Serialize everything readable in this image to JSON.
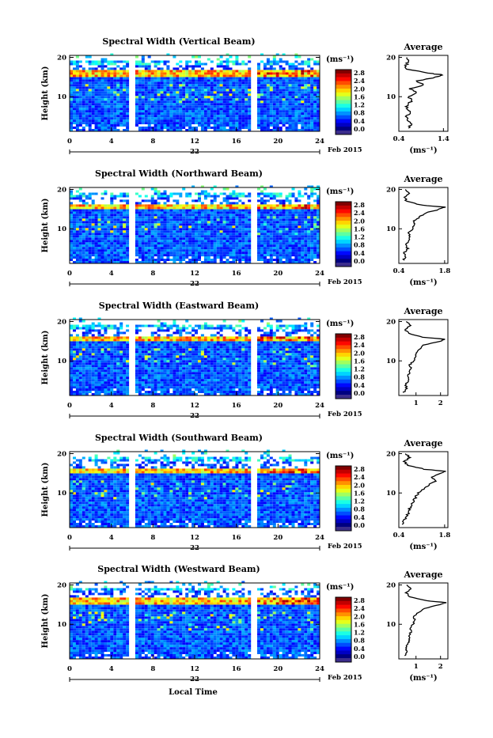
{
  "figure": {
    "x_axis_label": "Local Time",
    "date_label_day": "22",
    "date_label_month": "Feb 2015",
    "colorbar_unit": "(ms⁻¹)",
    "colorbar_ticks": [
      "2.8",
      "2.4",
      "2.0",
      "1.6",
      "1.2",
      "0.8",
      "0.4",
      "0.0"
    ],
    "avg_title": "Average",
    "avg_unit": "(ms⁻¹)",
    "height_label": "Height (km)"
  },
  "chart_data": [
    {
      "type": "heatmap",
      "title": "Spectral Width (Vertical Beam)",
      "xlabel": "",
      "ylabel": "Height (km)",
      "x_ticks": [
        0,
        4,
        8,
        12,
        16,
        20,
        24
      ],
      "x_range": [
        0,
        24
      ],
      "y_ticks": [
        10,
        20
      ],
      "y_range": [
        1.2,
        20.5
      ],
      "gaps_hours": [
        [
          5.8,
          6.2
        ],
        [
          17.6,
          18.0
        ]
      ],
      "tropopause_km": 15.5,
      "colorbar": {
        "min": 0.0,
        "max": 3.0,
        "ticks": [
          0.0,
          0.4,
          0.8,
          1.2,
          1.6,
          2.0,
          2.4,
          2.8
        ]
      },
      "average_profile": {
        "xlabel": "(ms⁻¹)",
        "x_ticks": [
          0.4,
          1.4
        ],
        "x_range": [
          0.4,
          1.5
        ],
        "y_ticks": [
          10,
          20
        ],
        "height_km": [
          2,
          3,
          4,
          5,
          6,
          7,
          8,
          9,
          10,
          11,
          12,
          13,
          14,
          15,
          15.5,
          16,
          17,
          18,
          19,
          20
        ],
        "value": [
          0.62,
          0.7,
          0.55,
          0.58,
          0.68,
          0.6,
          0.57,
          0.72,
          0.62,
          0.78,
          0.66,
          0.95,
          0.8,
          1.25,
          1.4,
          1.05,
          0.6,
          0.55,
          0.62,
          0.58
        ]
      }
    },
    {
      "type": "heatmap",
      "title": "Spectral Width (Northward Beam)",
      "xlabel": "",
      "ylabel": "Height (km)",
      "x_ticks": [
        0,
        4,
        8,
        12,
        16,
        20,
        24
      ],
      "x_range": [
        0,
        24
      ],
      "y_ticks": [
        10,
        20
      ],
      "y_range": [
        1.2,
        20.5
      ],
      "gaps_hours": [
        [
          5.8,
          6.2
        ],
        [
          17.6,
          18.0
        ]
      ],
      "tropopause_km": 15.3,
      "colorbar": {
        "min": 0.0,
        "max": 3.0,
        "ticks": [
          0.0,
          0.4,
          0.8,
          1.2,
          1.6,
          2.0,
          2.4,
          2.8
        ]
      },
      "average_profile": {
        "xlabel": "(ms⁻¹)",
        "x_ticks": [
          0.4,
          1.8
        ],
        "x_range": [
          0.4,
          1.9
        ],
        "y_ticks": [
          10,
          20
        ],
        "height_km": [
          2,
          3,
          4,
          5,
          6,
          7,
          8,
          9,
          10,
          11,
          12,
          13,
          14,
          15,
          15.5,
          16,
          17,
          18,
          19,
          20
        ],
        "value": [
          0.55,
          0.6,
          0.58,
          0.66,
          0.62,
          0.7,
          0.75,
          0.68,
          0.82,
          0.9,
          0.86,
          1.05,
          1.2,
          1.65,
          1.8,
          1.1,
          0.65,
          0.55,
          0.7,
          0.6
        ]
      }
    },
    {
      "type": "heatmap",
      "title": "Spectral Width (Eastward Beam)",
      "xlabel": "",
      "ylabel": "Height (km)",
      "x_ticks": [
        0,
        4,
        8,
        12,
        16,
        20,
        24
      ],
      "x_range": [
        0,
        24
      ],
      "y_ticks": [
        10,
        20
      ],
      "y_range": [
        1.2,
        20.5
      ],
      "gaps_hours": [
        [
          5.8,
          6.2
        ],
        [
          17.6,
          18.0
        ]
      ],
      "tropopause_km": 15.3,
      "colorbar": {
        "min": 0.0,
        "max": 3.0,
        "ticks": [
          0.0,
          0.4,
          0.8,
          1.2,
          1.6,
          2.0,
          2.4,
          2.8
        ]
      },
      "average_profile": {
        "xlabel": "",
        "x_ticks": [
          1,
          2
        ],
        "x_range": [
          0.3,
          2.3
        ],
        "y_ticks": [
          10,
          20
        ],
        "height_km": [
          2,
          3,
          4,
          5,
          6,
          7,
          8,
          9,
          10,
          11,
          12,
          13,
          14,
          15,
          15.5,
          16,
          17,
          18,
          19,
          20
        ],
        "value": [
          0.5,
          0.62,
          0.58,
          0.7,
          0.66,
          0.72,
          0.8,
          0.75,
          0.9,
          0.95,
          1.0,
          1.15,
          1.3,
          2.0,
          2.15,
          1.3,
          0.7,
          0.55,
          0.8,
          0.6
        ]
      }
    },
    {
      "type": "heatmap",
      "title": "Spectral Width (Southward Beam)",
      "xlabel": "",
      "ylabel": "Height (km)",
      "x_ticks": [
        0,
        4,
        8,
        12,
        16,
        20,
        24
      ],
      "x_range": [
        0,
        24
      ],
      "y_ticks": [
        10,
        20
      ],
      "y_range": [
        1.2,
        20.5
      ],
      "gaps_hours": [
        [
          5.8,
          6.2
        ],
        [
          17.6,
          18.0
        ]
      ],
      "tropopause_km": 15.2,
      "colorbar": {
        "min": 0.0,
        "max": 3.0,
        "ticks": [
          0.0,
          0.4,
          0.8,
          1.2,
          1.6,
          2.0,
          2.4,
          2.8
        ]
      },
      "average_profile": {
        "xlabel": "(ms⁻¹)",
        "x_ticks": [
          0.4,
          1.8
        ],
        "x_range": [
          0.4,
          1.9
        ],
        "y_ticks": [
          10,
          20
        ],
        "height_km": [
          2,
          3,
          4,
          5,
          6,
          7,
          8,
          9,
          10,
          11,
          12,
          13,
          14,
          15,
          15.5,
          16,
          17,
          18,
          19,
          20
        ],
        "value": [
          0.5,
          0.56,
          0.62,
          0.7,
          0.72,
          0.8,
          0.85,
          0.92,
          1.0,
          1.15,
          1.3,
          1.5,
          1.4,
          1.7,
          1.85,
          1.2,
          0.7,
          0.55,
          0.75,
          0.6
        ]
      }
    },
    {
      "type": "heatmap",
      "title": "Spectral Width (Westward Beam)",
      "xlabel": "Local Time",
      "ylabel": "Height (km)",
      "x_ticks": [
        0,
        4,
        8,
        12,
        16,
        20,
        24
      ],
      "x_range": [
        0,
        24
      ],
      "y_ticks": [
        10,
        20
      ],
      "y_range": [
        1.2,
        20.5
      ],
      "gaps_hours": [
        [
          5.8,
          6.2
        ],
        [
          17.6,
          18.0
        ]
      ],
      "tropopause_km": 15.6,
      "colorbar": {
        "min": 0.0,
        "max": 3.0,
        "ticks": [
          0.0,
          0.4,
          0.8,
          1.2,
          1.6,
          2.0,
          2.4,
          2.8
        ]
      },
      "average_profile": {
        "xlabel": "(ms⁻¹)",
        "x_ticks": [
          1,
          2
        ],
        "x_range": [
          0.3,
          2.3
        ],
        "y_ticks": [
          10,
          20
        ],
        "height_km": [
          2,
          3,
          4,
          5,
          6,
          7,
          8,
          9,
          10,
          11,
          12,
          13,
          14,
          15,
          15.5,
          16,
          17,
          18,
          19,
          20
        ],
        "value": [
          0.55,
          0.62,
          0.6,
          0.68,
          0.72,
          0.7,
          0.8,
          0.78,
          0.88,
          0.95,
          0.92,
          1.1,
          1.35,
          1.95,
          2.2,
          1.4,
          0.75,
          0.6,
          0.8,
          0.62
        ]
      }
    }
  ]
}
